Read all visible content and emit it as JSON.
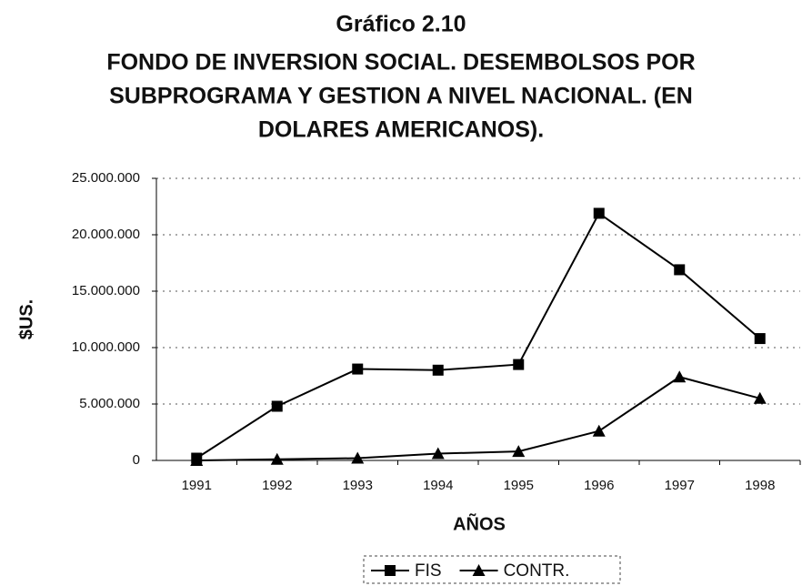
{
  "chart_data": {
    "type": "line",
    "title": "Gráfico 2.10",
    "subtitle": [
      "FONDO DE INVERSION SOCIAL. DESEMBOLSOS POR",
      "SUBPROGRAMA Y GESTION A NIVEL NACIONAL. (EN",
      "DOLARES AMERICANOS)."
    ],
    "x_label": "AÑOS",
    "y_label": "$US.",
    "categories": [
      "1991",
      "1992",
      "1993",
      "1994",
      "1995",
      "1996",
      "1997",
      "1998"
    ],
    "series": [
      {
        "name": "FIS",
        "color": "#000000",
        "marker": "square",
        "values": [
          200000,
          4800000,
          8100000,
          8000000,
          8500000,
          21900000,
          16900000,
          10800000
        ]
      },
      {
        "name": "CONTR.",
        "color": "#000000",
        "marker": "triangle",
        "values": [
          0,
          100000,
          200000,
          600000,
          800000,
          2600000,
          7400000,
          5500000
        ]
      }
    ],
    "ylim": [
      0,
      25000000
    ],
    "yticks": [
      0,
      {
        "value": 5000000,
        "label": "5.000.000"
      },
      {
        "value": 10000000,
        "label": "10.000.000"
      },
      {
        "value": 15000000,
        "label": "15.000.000"
      },
      {
        "value": 20000000,
        "label": "20.000.000"
      },
      {
        "value": 25000000,
        "label": "25.000.000"
      }
    ],
    "grid": true,
    "legend": "bottom"
  }
}
